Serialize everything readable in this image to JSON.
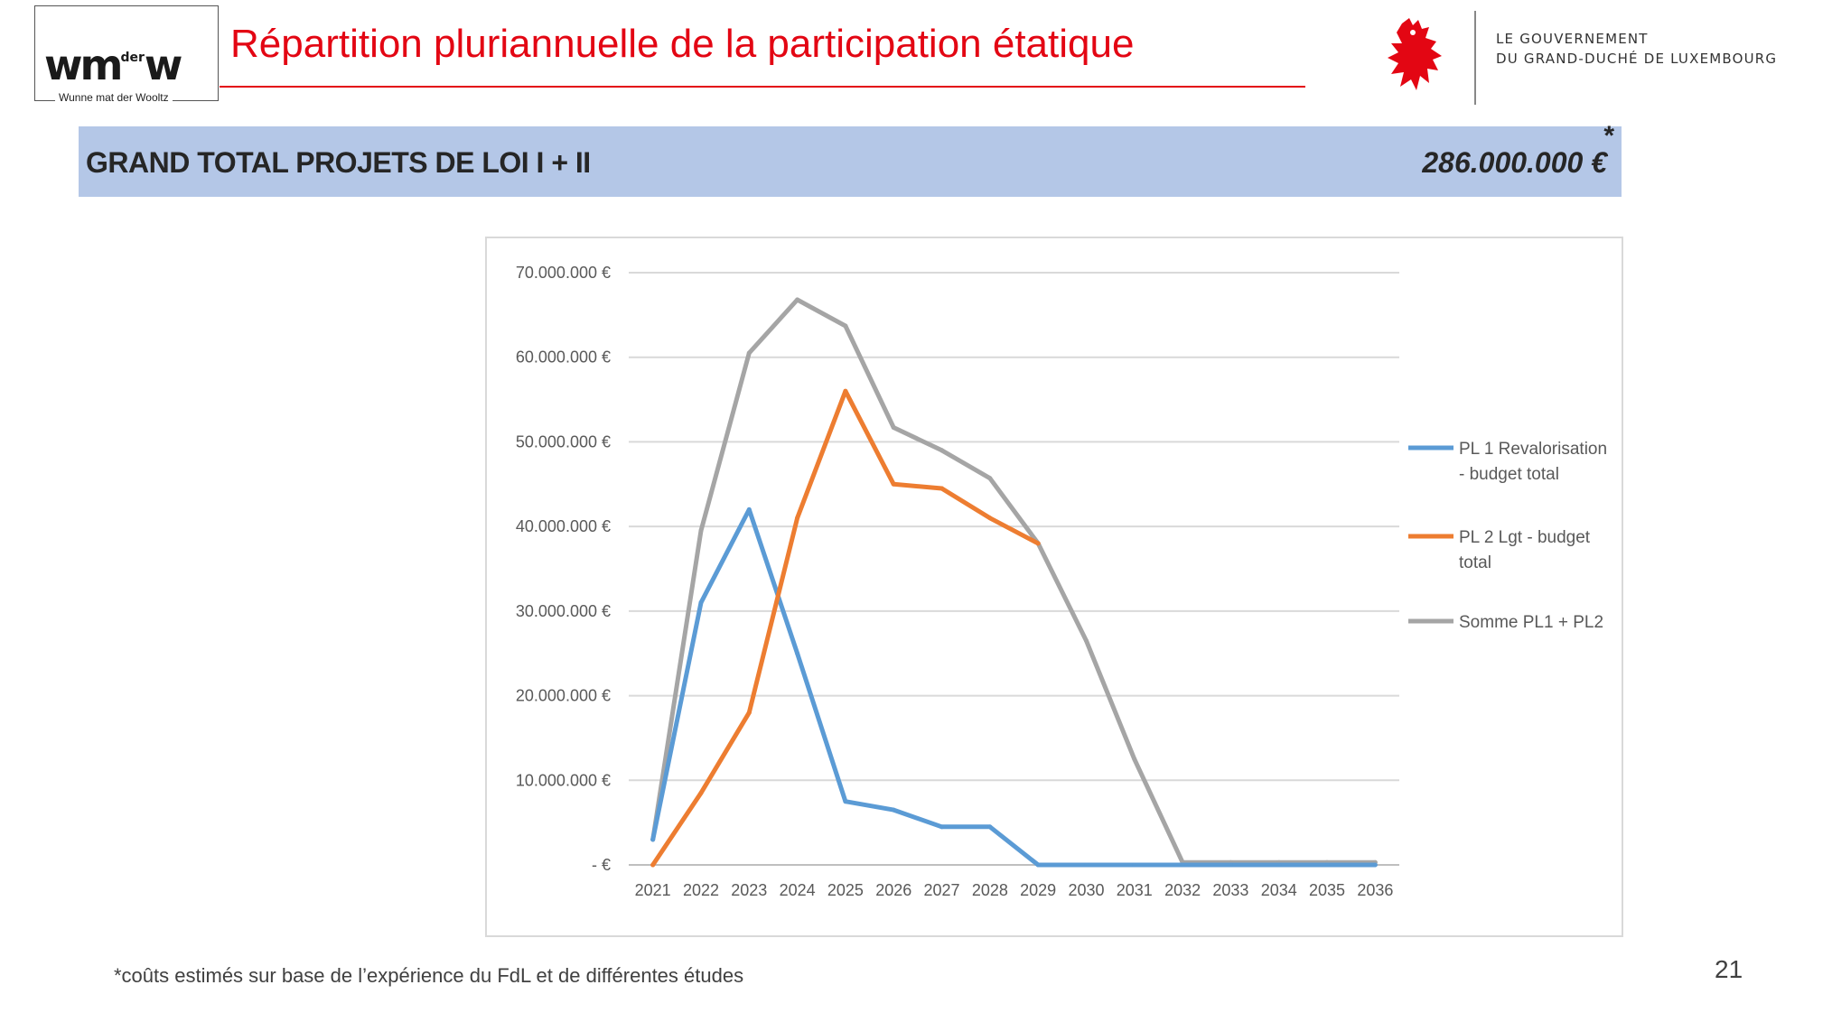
{
  "header": {
    "title": "Répartition pluriannuelle de la participation étatique",
    "logo": {
      "mark": "wm",
      "mark_small": "der",
      "mark_end": "w",
      "tagline": "Wunne mat der Wooltz"
    },
    "government": {
      "line1": "LE GOUVERNEMENT",
      "line2": "DU GRAND-DUCHÉ DE LUXEMBOURG",
      "emblem": "red-lion-icon"
    }
  },
  "banner": {
    "label": "GRAND TOTAL PROJETS DE LOI I + II",
    "amount": "286.000.000 €",
    "asterisk": "*"
  },
  "chart_data": {
    "type": "line",
    "title": "",
    "xlabel": "",
    "ylabel": "",
    "x": [
      "2021",
      "2022",
      "2023",
      "2024",
      "2025",
      "2026",
      "2027",
      "2028",
      "2029",
      "2030",
      "2031",
      "2032",
      "2033",
      "2034",
      "2035",
      "2036"
    ],
    "yticks": [
      0,
      10000000,
      20000000,
      30000000,
      40000000,
      50000000,
      60000000,
      70000000
    ],
    "ytick_labels": [
      "-   €",
      "10.000.000 €",
      "20.000.000 €",
      "30.000.000 €",
      "40.000.000 €",
      "50.000.000 €",
      "60.000.000 €",
      "70.000.000 €"
    ],
    "ylim": [
      0,
      70000000
    ],
    "grid": true,
    "legend_position": "right",
    "series": [
      {
        "name": "PL 1 Revalorisation - budget total",
        "legend_lines": [
          "PL 1 Revalorisation",
          "- budget total"
        ],
        "color": "#5b9bd5",
        "values": [
          3000000,
          31000000,
          42000000,
          25000000,
          7500000,
          6500000,
          4500000,
          4500000,
          0,
          0,
          0,
          0,
          0,
          0,
          0,
          0
        ]
      },
      {
        "name": "PL 2 Lgt - budget total",
        "legend_lines": [
          "PL 2 Lgt - budget",
          "total"
        ],
        "color": "#ed7d31",
        "values": [
          0,
          8500000,
          18000000,
          41000000,
          56000000,
          45000000,
          44500000,
          41000000,
          38000000,
          null,
          null,
          null,
          null,
          null,
          null,
          null
        ]
      },
      {
        "name": "Somme PL1 + PL2",
        "legend_lines": [
          "Somme PL1 + PL2"
        ],
        "color": "#a5a5a5",
        "values": [
          3000000,
          39500000,
          60500000,
          66800000,
          63700000,
          51700000,
          49000000,
          45700000,
          38000000,
          26500000,
          12500000,
          300000,
          300000,
          300000,
          300000,
          300000
        ]
      }
    ]
  },
  "footnote": "*coûts estimés sur base de l’expérience du FdL et de différentes études",
  "page_number": "21"
}
